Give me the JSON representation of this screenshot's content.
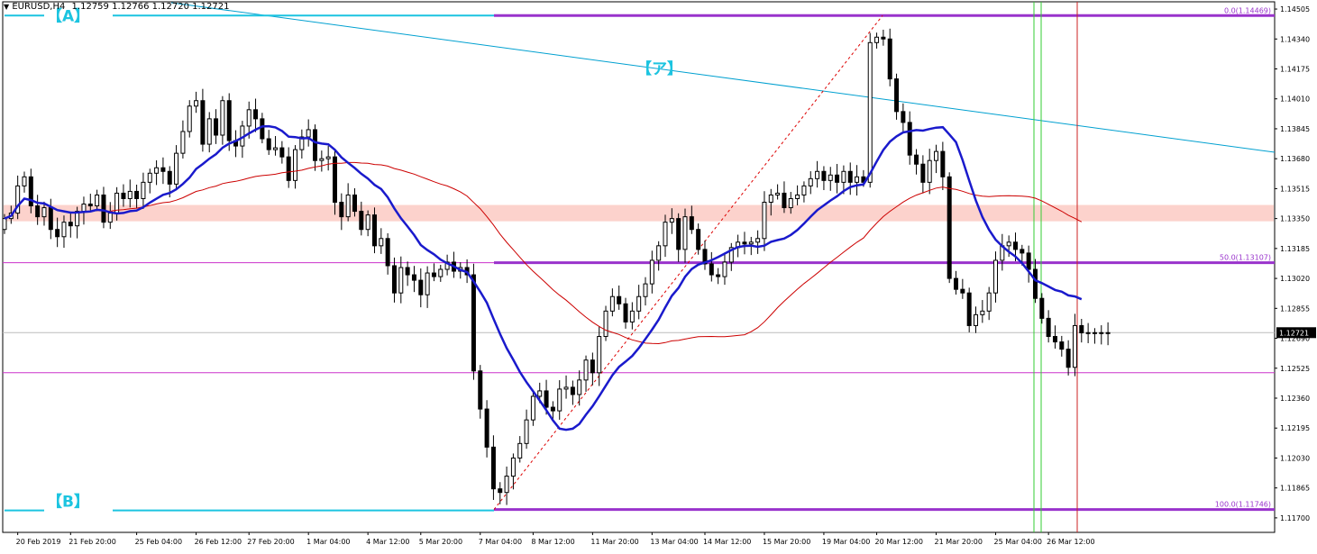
{
  "header": {
    "symbol": "EURUSD,H4",
    "ohlc": "1.12759 1.12766 1.12720 1.12721"
  },
  "colors": {
    "background": "#ffffff",
    "frame": "#000000",
    "bull_body": "#ffffff",
    "bear_body": "#000000",
    "wick": "#000000",
    "ma_fast": "#1a1acc",
    "ma_slow": "#cc0000",
    "trendline": "#00a0d0",
    "fib_line": "#9933cc",
    "fib_text": "#9933cc",
    "fib_diagonal": "#dd0000",
    "support_zone": "#fcd2cc",
    "horizontal_magenta": "#cc33cc",
    "vline_green": "#33cc33",
    "vline_red": "#cc2222",
    "cyan_marker": "#1cc4e0",
    "current_price_line": "#bbbbbb"
  },
  "chart_data": {
    "type": "candlestick",
    "symbol": "EURUSD",
    "timeframe": "H4",
    "ylim": [
      1.1162,
      1.14545
    ],
    "yticks": [
      "1.14505",
      "1.14340",
      "1.14175",
      "1.14010",
      "1.13845",
      "1.13680",
      "1.13515",
      "1.13350",
      "1.13185",
      "1.13020",
      "1.12855",
      "1.12690",
      "1.12525",
      "1.12360",
      "1.12195",
      "1.12030",
      "1.11865",
      "1.11700"
    ],
    "xticks": [
      {
        "label": "20 Feb 2019",
        "bar": 2
      },
      {
        "label": "21 Feb 20:00",
        "bar": 10
      },
      {
        "label": "25 Feb 04:00",
        "bar": 20
      },
      {
        "label": "26 Feb 12:00",
        "bar": 29
      },
      {
        "label": "27 Feb 20:00",
        "bar": 37
      },
      {
        "label": "1 Mar 04:00",
        "bar": 46
      },
      {
        "label": "4 Mar 12:00",
        "bar": 55
      },
      {
        "label": "5 Mar 20:00",
        "bar": 63
      },
      {
        "label": "7 Mar 04:00",
        "bar": 72
      },
      {
        "label": "8 Mar 12:00",
        "bar": 80
      },
      {
        "label": "11 Mar 20:00",
        "bar": 89
      },
      {
        "label": "13 Mar 04:00",
        "bar": 98
      },
      {
        "label": "14 Mar 12:00",
        "bar": 106
      },
      {
        "label": "15 Mar 20:00",
        "bar": 115
      },
      {
        "label": "19 Mar 04:00",
        "bar": 124
      },
      {
        "label": "20 Mar 12:00",
        "bar": 132
      },
      {
        "label": "21 Mar 20:00",
        "bar": 141
      },
      {
        "label": "25 Mar 04:00",
        "bar": 150
      },
      {
        "label": "26 Mar 12:00",
        "bar": 158
      }
    ],
    "bar_count": 166,
    "last_price": "1.12721",
    "last_price_value": 1.12721,
    "candles_close": [
      1.1335,
      1.1338,
      1.1353,
      1.1358,
      1.1342,
      1.1336,
      1.1341,
      1.1329,
      1.1325,
      1.1333,
      1.1331,
      1.1339,
      1.1343,
      1.1342,
      1.1348,
      1.1333,
      1.1338,
      1.1349,
      1.1346,
      1.135,
      1.1346,
      1.1355,
      1.136,
      1.1363,
      1.1361,
      1.1354,
      1.1371,
      1.1383,
      1.1397,
      1.14,
      1.1376,
      1.139,
      1.1381,
      1.14,
      1.1378,
      1.1375,
      1.1386,
      1.1395,
      1.139,
      1.1379,
      1.1373,
      1.1374,
      1.1369,
      1.1356,
      1.1373,
      1.138,
      1.1384,
      1.1367,
      1.1368,
      1.1369,
      1.1344,
      1.1336,
      1.1348,
      1.1339,
      1.1329,
      1.1337,
      1.132,
      1.1324,
      1.1309,
      1.1294,
      1.1308,
      1.1304,
      1.1301,
      1.1293,
      1.1305,
      1.1303,
      1.1307,
      1.1311,
      1.1306,
      1.1308,
      1.1304,
      1.1251,
      1.123,
      1.1209,
      1.1186,
      1.1184,
      1.1193,
      1.1203,
      1.1211,
      1.1224,
      1.1237,
      1.124,
      1.1231,
      1.1229,
      1.1241,
      1.1242,
      1.1238,
      1.1246,
      1.1257,
      1.125,
      1.127,
      1.1284,
      1.1292,
      1.1288,
      1.1278,
      1.1284,
      1.1292,
      1.1299,
      1.1312,
      1.132,
      1.1333,
      1.1335,
      1.1318,
      1.1336,
      1.1329,
      1.1318,
      1.131,
      1.1304,
      1.1303,
      1.1311,
      1.1319,
      1.1322,
      1.1321,
      1.1322,
      1.1324,
      1.1344,
      1.1348,
      1.1349,
      1.1341,
      1.1346,
      1.1348,
      1.1353,
      1.1357,
      1.1361,
      1.1356,
      1.1359,
      1.1355,
      1.1361,
      1.1355,
      1.1358,
      1.1355,
      1.1432,
      1.1435,
      1.1434,
      1.1412,
      1.1394,
      1.1388,
      1.137,
      1.1365,
      1.1355,
      1.1367,
      1.1372,
      1.1358,
      1.1302,
      1.1296,
      1.1294,
      1.1276,
      1.1282,
      1.1284,
      1.1294,
      1.1312,
      1.132,
      1.1322,
      1.1318,
      1.1316,
      1.1307,
      1.1291,
      1.128,
      1.127,
      1.1267,
      1.1263,
      1.1253,
      1.1276,
      1.1272,
      1.12721,
      1.12721,
      1.12721,
      1.12721
    ],
    "annotations": {
      "bracket_A": "【A】",
      "bracket_B": "【B】",
      "bracket_a": "【ア】",
      "fib_0": "0.0(1.14469)",
      "fib_50": "50.0(1.13107)",
      "fib_100": "100.0(1.11746)",
      "fib_0_value": 1.14469,
      "fib_50_value": 1.13107,
      "fib_100_value": 1.11746,
      "support_zone_low": 1.13335,
      "support_zone_high": 1.13425,
      "magenta_upper": 1.13107,
      "magenta_lower": 1.125
    },
    "grid": false
  }
}
